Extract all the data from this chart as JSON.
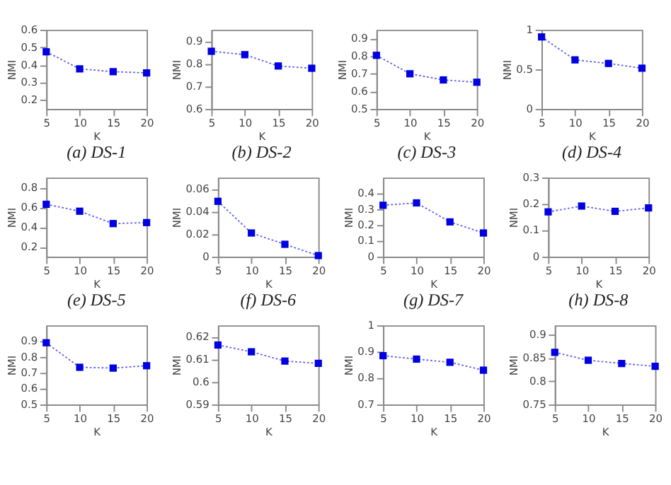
{
  "chart_data": [
    {
      "type": "line",
      "title": "(a) DS-1",
      "xlabel": "K",
      "ylabel": "NMI",
      "x": [
        5,
        10,
        15,
        20
      ],
      "series": [
        {
          "color": "#0000e0",
          "values": [
            0.475,
            0.378,
            0.362,
            0.355
          ]
        }
      ],
      "xlim": [
        5,
        20
      ],
      "xticks": [
        5,
        10,
        15,
        20
      ],
      "ylim": [
        0.15,
        0.6
      ],
      "yticks": [
        0.2,
        0.3,
        0.4,
        0.5,
        0.6
      ],
      "grid": false,
      "marker": "square",
      "line_style": "dotted"
    },
    {
      "type": "line",
      "title": "(b) DS-2",
      "xlabel": "K",
      "ylabel": "NMI",
      "x": [
        5,
        10,
        15,
        20
      ],
      "series": [
        {
          "color": "#0000e0",
          "values": [
            0.855,
            0.84,
            0.79,
            0.78
          ]
        }
      ],
      "xlim": [
        5,
        20
      ],
      "xticks": [
        5,
        10,
        15,
        20
      ],
      "ylim": [
        0.6,
        0.95
      ],
      "yticks": [
        0.6,
        0.7,
        0.8,
        0.9
      ],
      "grid": false,
      "marker": "square",
      "line_style": "dotted"
    },
    {
      "type": "line",
      "title": "(c) DS-3",
      "xlabel": "K",
      "ylabel": "NMI",
      "x": [
        5,
        10,
        15,
        20
      ],
      "series": [
        {
          "color": "#0000e0",
          "values": [
            0.805,
            0.7,
            0.665,
            0.652
          ]
        }
      ],
      "xlim": [
        5,
        20
      ],
      "xticks": [
        5,
        10,
        15,
        20
      ],
      "ylim": [
        0.5,
        0.95
      ],
      "yticks": [
        0.5,
        0.6,
        0.7,
        0.8,
        0.9
      ],
      "grid": false,
      "marker": "square",
      "line_style": "dotted"
    },
    {
      "type": "line",
      "title": "(d) DS-4",
      "xlabel": "K",
      "ylabel": "NMI",
      "x": [
        5,
        10,
        15,
        20
      ],
      "series": [
        {
          "color": "#0000e0",
          "values": [
            0.91,
            0.62,
            0.575,
            0.515
          ]
        }
      ],
      "xlim": [
        5,
        20
      ],
      "xticks": [
        5,
        10,
        15,
        20
      ],
      "ylim": [
        0,
        1
      ],
      "yticks": [
        0,
        0.5,
        1
      ],
      "grid": false,
      "marker": "square",
      "line_style": "dotted"
    },
    {
      "type": "line",
      "title": "(e) DS-5",
      "xlabel": "K",
      "ylabel": "NMI",
      "x": [
        5,
        10,
        15,
        20
      ],
      "series": [
        {
          "color": "#0000e0",
          "values": [
            0.63,
            0.56,
            0.435,
            0.445
          ]
        }
      ],
      "xlim": [
        5,
        20
      ],
      "xticks": [
        5,
        10,
        15,
        20
      ],
      "ylim": [
        0.1,
        0.9
      ],
      "yticks": [
        0.2,
        0.4,
        0.6,
        0.8
      ],
      "grid": false,
      "marker": "square",
      "line_style": "dotted"
    },
    {
      "type": "line",
      "title": "(f) DS-6",
      "xlabel": "K",
      "ylabel": "NMI",
      "x": [
        5,
        10,
        15,
        20
      ],
      "series": [
        {
          "color": "#0000e0",
          "values": [
            0.049,
            0.021,
            0.011,
            0.001
          ]
        }
      ],
      "xlim": [
        5,
        20
      ],
      "xticks": [
        5,
        10,
        15,
        20
      ],
      "ylim": [
        0,
        0.07
      ],
      "yticks": [
        0,
        0.02,
        0.04,
        0.06
      ],
      "grid": false,
      "marker": "square",
      "line_style": "dotted"
    },
    {
      "type": "line",
      "title": "(g) DS-7",
      "xlabel": "K",
      "ylabel": "NMI",
      "x": [
        5,
        10,
        15,
        20
      ],
      "series": [
        {
          "color": "#0000e0",
          "values": [
            0.325,
            0.34,
            0.22,
            0.15
          ]
        }
      ],
      "xlim": [
        5,
        20
      ],
      "xticks": [
        5,
        10,
        15,
        20
      ],
      "ylim": [
        0,
        0.5
      ],
      "yticks": [
        0,
        0.1,
        0.2,
        0.3,
        0.4
      ],
      "grid": false,
      "marker": "square",
      "line_style": "dotted"
    },
    {
      "type": "line",
      "title": "(h) DS-8",
      "xlabel": "K",
      "ylabel": "NMI",
      "x": [
        5,
        10,
        15,
        20
      ],
      "series": [
        {
          "color": "#0000e0",
          "values": [
            0.17,
            0.192,
            0.172,
            0.185
          ]
        }
      ],
      "xlim": [
        5,
        20
      ],
      "xticks": [
        5,
        10,
        15,
        20
      ],
      "ylim": [
        0,
        0.3
      ],
      "yticks": [
        0,
        0.1,
        0.2,
        0.3
      ],
      "grid": false,
      "marker": "square",
      "line_style": "dotted"
    },
    {
      "type": "line",
      "xlabel": "K",
      "ylabel": "NMI",
      "x": [
        5,
        10,
        15,
        20
      ],
      "series": [
        {
          "color": "#0000e0",
          "values": [
            0.89,
            0.735,
            0.73,
            0.745
          ]
        }
      ],
      "xlim": [
        5,
        20
      ],
      "xticks": [
        5,
        10,
        15,
        20
      ],
      "ylim": [
        0.5,
        1
      ],
      "yticks": [
        0.5,
        0.6,
        0.7,
        0.8,
        0.9
      ],
      "grid": false,
      "marker": "square",
      "line_style": "dotted"
    },
    {
      "type": "line",
      "xlabel": "K",
      "ylabel": "NMI",
      "x": [
        5,
        10,
        15,
        20
      ],
      "series": [
        {
          "color": "#0000e0",
          "values": [
            0.6163,
            0.6133,
            0.6092,
            0.6082
          ]
        }
      ],
      "xlim": [
        5,
        20
      ],
      "xticks": [
        5,
        10,
        15,
        20
      ],
      "ylim": [
        0.59,
        0.625
      ],
      "yticks": [
        0.59,
        0.6,
        0.61,
        0.62
      ],
      "grid": false,
      "marker": "square",
      "line_style": "dotted"
    },
    {
      "type": "line",
      "xlabel": "K",
      "ylabel": "NMI",
      "x": [
        5,
        10,
        15,
        20
      ],
      "series": [
        {
          "color": "#0000e0",
          "values": [
            0.885,
            0.872,
            0.86,
            0.83
          ]
        }
      ],
      "xlim": [
        5,
        20
      ],
      "xticks": [
        5,
        10,
        15,
        20
      ],
      "ylim": [
        0.7,
        1
      ],
      "yticks": [
        0.7,
        0.8,
        0.9,
        1
      ],
      "grid": false,
      "marker": "square",
      "line_style": "dotted"
    },
    {
      "type": "line",
      "xlabel": "K",
      "ylabel": "NMI",
      "x": [
        5,
        10,
        15,
        20
      ],
      "series": [
        {
          "color": "#0000e0",
          "values": [
            0.862,
            0.845,
            0.838,
            0.832
          ]
        }
      ],
      "xlim": [
        5,
        20
      ],
      "xticks": [
        5,
        10,
        15,
        20
      ],
      "ylim": [
        0.75,
        0.92
      ],
      "yticks": [
        0.75,
        0.8,
        0.85,
        0.9
      ],
      "grid": false,
      "marker": "square",
      "line_style": "dotted"
    }
  ]
}
